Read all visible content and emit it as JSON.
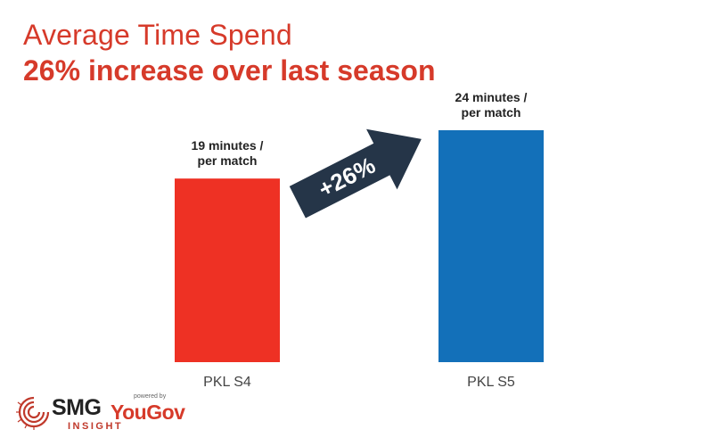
{
  "header": {
    "title": "Average Time Spend",
    "subtitle": "26% increase over last season"
  },
  "chart_data": {
    "type": "bar",
    "categories": [
      "PKL S4",
      "PKL S5"
    ],
    "values": [
      19,
      24
    ],
    "data_labels": [
      [
        "19 minutes /",
        "per match"
      ],
      [
        "24 minutes /",
        "per match"
      ]
    ],
    "bar_colors": [
      "#ee3124",
      "#1370b9"
    ],
    "ylim": [
      0,
      24
    ],
    "annotation": "+26%",
    "annotation_color": "#253548",
    "xlabel": "",
    "ylabel": "",
    "grid": false,
    "legend": false
  },
  "logo": {
    "brand": "SMG",
    "sub": "INSIGHT",
    "powered": "powered by",
    "partner": "YouGov"
  }
}
